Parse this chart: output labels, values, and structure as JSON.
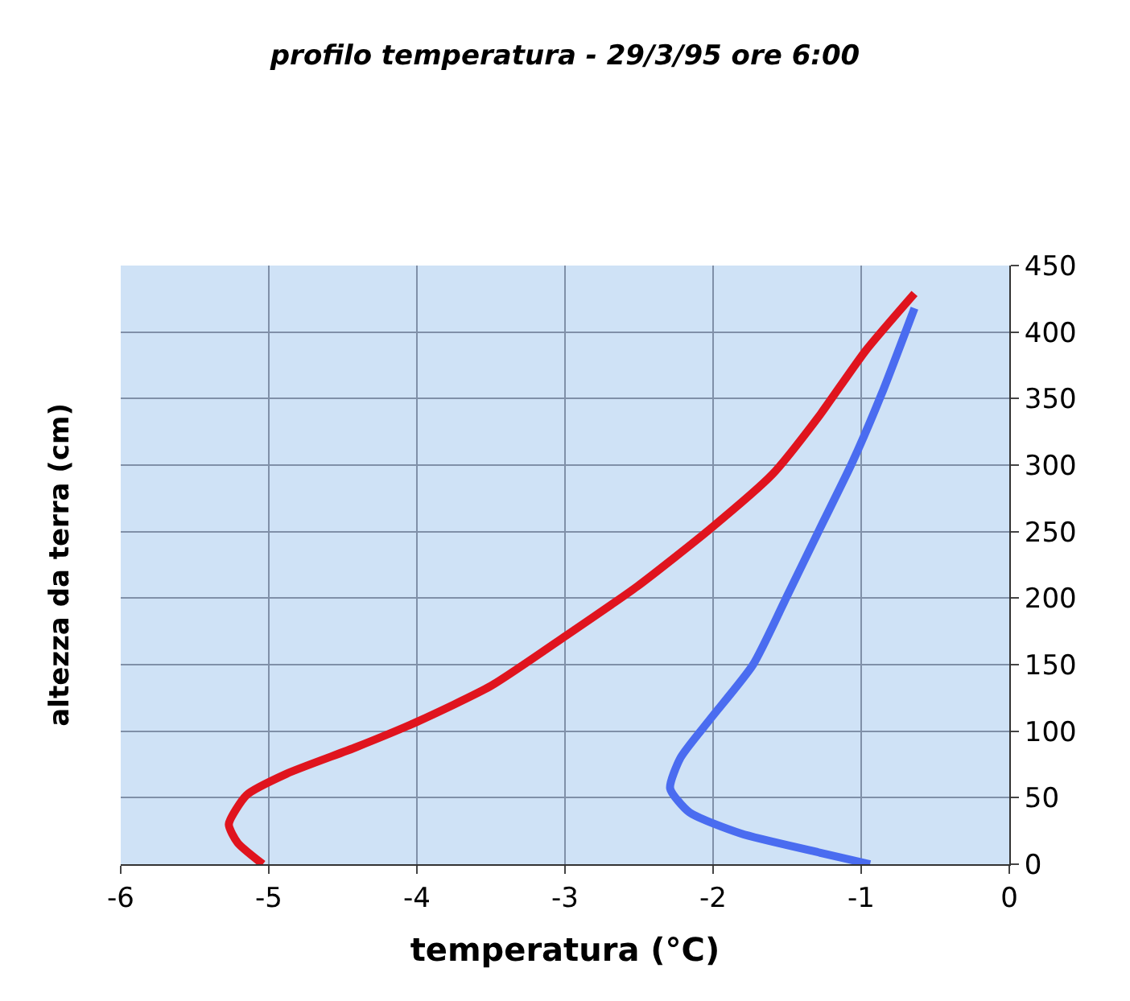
{
  "chart_data": {
    "type": "line",
    "title": "profilo temperatura - 29/3/95 ore 6:00",
    "xlabel": "temperatura (°C)",
    "ylabel": "altezza da terra (cm)",
    "xlim": [
      -6,
      0
    ],
    "xticks": [
      -6,
      -5,
      -4,
      -3,
      -2,
      -1,
      0
    ],
    "ylim": [
      0,
      450
    ],
    "yticks": [
      0,
      50,
      100,
      150,
      200,
      250,
      300,
      350,
      400,
      450
    ],
    "grid": true,
    "marker": "none",
    "line_style": "solid",
    "series": [
      {
        "color": "#e0141e",
        "x": [
          -5.04,
          -5.21,
          -5.27,
          -5.15,
          -4.88,
          -4.41,
          -4.0,
          -3.5,
          -2.99,
          -2.51,
          -2.02,
          -1.6,
          -1.29,
          -0.97,
          -0.64
        ],
        "values": [
          0,
          16,
          30,
          52,
          68,
          88,
          107,
          134,
          172,
          209,
          252,
          293,
          336,
          386,
          429
        ]
      },
      {
        "color": "#4a6cf0",
        "x": [
          -0.94,
          -1.33,
          -1.81,
          -2.16,
          -2.29,
          -2.22,
          -2.02,
          -1.73,
          -1.49,
          -1.28,
          -1.06,
          -0.86,
          -0.64
        ],
        "values": [
          0,
          10,
          23,
          39,
          57,
          80,
          109,
          150,
          204,
          252,
          302,
          354,
          418
        ]
      }
    ]
  }
}
